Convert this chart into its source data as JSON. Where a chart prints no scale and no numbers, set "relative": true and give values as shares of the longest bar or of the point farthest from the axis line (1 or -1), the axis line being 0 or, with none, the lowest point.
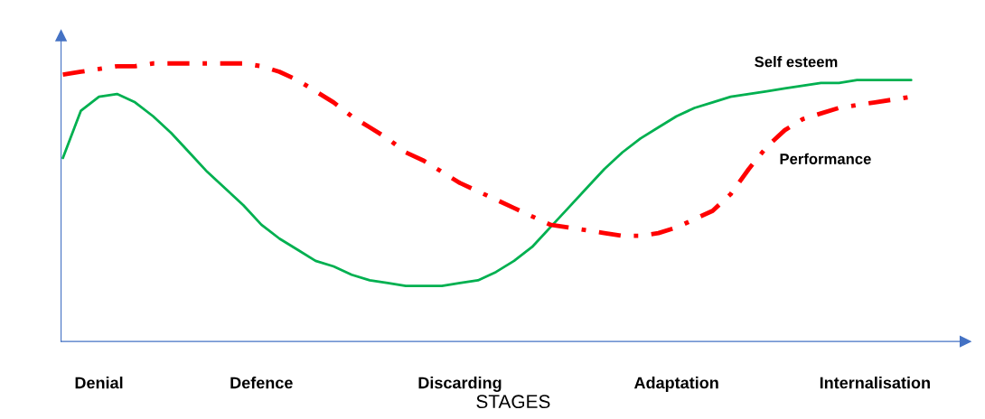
{
  "chart_data": {
    "type": "line",
    "relative": true,
    "xlabel": "STAGES",
    "categories": [
      null,
      null,
      "Denial",
      null,
      null,
      null,
      null,
      null,
      null,
      null,
      null,
      "Defence",
      null,
      null,
      null,
      null,
      null,
      null,
      null,
      null,
      null,
      null,
      "Discarding",
      null,
      null,
      null,
      null,
      null,
      null,
      null,
      null,
      null,
      null,
      null,
      "Adaptation",
      null,
      null,
      null,
      null,
      null,
      null,
      null,
      null,
      null,
      null,
      "Internalisation",
      null,
      null
    ],
    "grid": false,
    "legend": false,
    "marker": "none",
    "series": [
      {
        "name": "Self esteem",
        "color": "#00b050",
        "line_style": "solid",
        "values": [
          0.66,
          0.83,
          0.88,
          0.89,
          0.86,
          0.81,
          0.75,
          0.68,
          0.61,
          0.55,
          0.49,
          0.42,
          0.37,
          0.33,
          0.29,
          0.27,
          0.24,
          0.22,
          0.21,
          0.2,
          0.2,
          0.2,
          0.21,
          0.22,
          0.25,
          0.29,
          0.34,
          0.41,
          0.48,
          0.55,
          0.62,
          0.68,
          0.73,
          0.77,
          0.81,
          0.84,
          0.86,
          0.88,
          0.89,
          0.9,
          0.91,
          0.92,
          0.93,
          0.93,
          0.94,
          0.94,
          0.94,
          0.94
        ]
      },
      {
        "name": "Performance",
        "color": "#ff0000",
        "line_style": "dashdot",
        "values": [
          0.96,
          0.97,
          0.98,
          0.99,
          0.99,
          1.0,
          1.0,
          1.0,
          1.0,
          1.0,
          1.0,
          0.99,
          0.97,
          0.94,
          0.9,
          0.86,
          0.81,
          0.77,
          0.73,
          0.68,
          0.65,
          0.61,
          0.57,
          0.54,
          0.51,
          0.48,
          0.45,
          0.42,
          0.41,
          0.4,
          0.39,
          0.38,
          0.38,
          0.39,
          0.41,
          0.44,
          0.47,
          0.53,
          0.62,
          0.7,
          0.76,
          0.8,
          0.82,
          0.84,
          0.85,
          0.86,
          0.87,
          0.88
        ]
      }
    ]
  }
}
